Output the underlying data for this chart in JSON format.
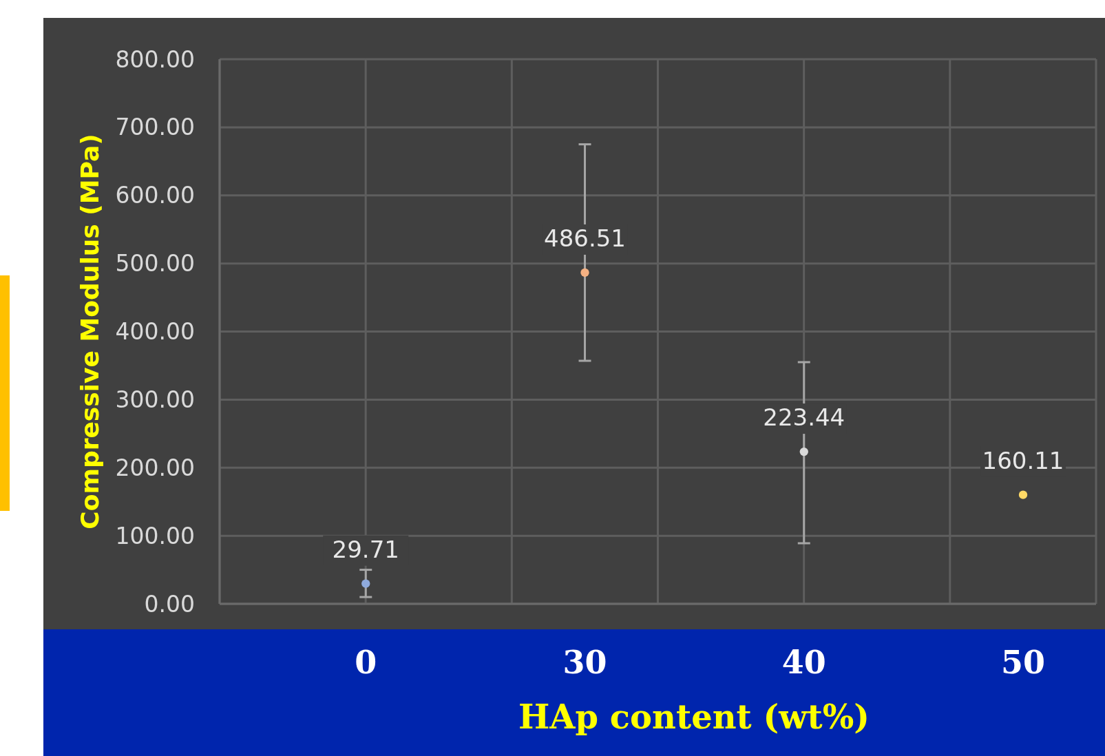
{
  "chart_data": {
    "type": "scatter",
    "xlabel": "HAp content (wt%)",
    "ylabel": "Compressive Modulus (MPa)",
    "categories": [
      "0",
      "30",
      "40",
      "50"
    ],
    "values": [
      29.71,
      486.51,
      223.44,
      160.11
    ],
    "colors": [
      "#8faadc",
      "#f4b183",
      "#d9d9d9",
      "#ffd966"
    ],
    "errors": [
      [
        10,
        50
      ],
      [
        357,
        675
      ],
      [
        89,
        355
      ],
      null
    ],
    "data_labels": true,
    "ylim": [
      0,
      800
    ],
    "yticks": [
      {
        "value": 0,
        "label": "0.00"
      },
      {
        "value": 100,
        "label": "100.00"
      },
      {
        "value": 200,
        "label": "200.00"
      },
      {
        "value": 300,
        "label": "300.00"
      },
      {
        "value": 400,
        "label": "400.00"
      },
      {
        "value": 500,
        "label": "500.00"
      },
      {
        "value": 600,
        "label": "600.00"
      },
      {
        "value": 700,
        "label": "700.00"
      },
      {
        "value": 800,
        "label": "800.00"
      }
    ],
    "grid": true,
    "marker": "circle"
  }
}
